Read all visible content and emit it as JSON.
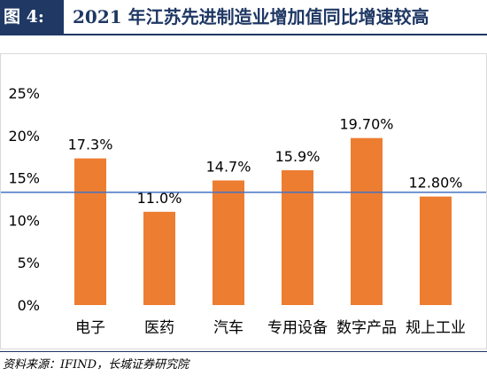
{
  "header": {
    "figure_label": "图 4:",
    "title": "2021 年江苏先进制造业增加值同比增速较高"
  },
  "footer": {
    "source": "资料来源：IFIND，长城证券研究院"
  },
  "colors": {
    "bar": "#ed7d31",
    "reference_line": "#4472c4",
    "header_bg": "#1f3864"
  },
  "chart_data": {
    "type": "bar",
    "categories": [
      "电子",
      "医药",
      "汽车",
      "专用设备",
      "数字产品",
      "规上工业"
    ],
    "values": [
      17.3,
      11.0,
      14.7,
      15.9,
      19.7,
      12.8
    ],
    "data_labels": [
      "17.3%",
      "11.0%",
      "14.7%",
      "15.9%",
      "19.70%",
      "12.80%"
    ],
    "ylim": [
      0,
      25
    ],
    "yticks": [
      0,
      5,
      10,
      15,
      20,
      25
    ],
    "ytick_labels": [
      "0%",
      "5%",
      "10%",
      "15%",
      "20%",
      "25%"
    ],
    "reference_line": 13.3,
    "title": "",
    "xlabel": "",
    "ylabel": "",
    "grid": false,
    "legend": "none"
  }
}
